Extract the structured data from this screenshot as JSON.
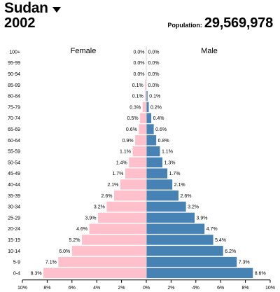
{
  "header": {
    "country": "Sudan",
    "year": "2002",
    "population_label": "Population:",
    "population_value": "29,569,978"
  },
  "chart_data": {
    "type": "bar",
    "orientation": "horizontal-population-pyramid",
    "categories": [
      "100+",
      "95-99",
      "90-94",
      "85-89",
      "80-84",
      "75-79",
      "70-74",
      "65-69",
      "60-64",
      "55-59",
      "50-54",
      "45-49",
      "40-44",
      "35-39",
      "30-34",
      "25-29",
      "20-24",
      "15-19",
      "10-14",
      "5-9",
      "0-4"
    ],
    "series": [
      {
        "name": "Female",
        "color": "#ffc0cb",
        "values": [
          0.0,
          0.0,
          0.0,
          0.1,
          0.1,
          0.3,
          0.5,
          0.6,
          0.9,
          1.1,
          1.4,
          1.7,
          2.1,
          2.6,
          3.2,
          3.9,
          4.6,
          5.2,
          6.0,
          7.1,
          8.3
        ],
        "labels": [
          "0.0%",
          "0.0%",
          "0.0%",
          "0.1%",
          "0.1%",
          "0.3%",
          "0.5%",
          "0.6%",
          "0.9%",
          "1.1%",
          "1.4%",
          "1.7%",
          "2.1%",
          "2.6%",
          "3.2%",
          "3.9%",
          "4.6%",
          "5.2%",
          "6.0%",
          "7.1%",
          "8.3%"
        ]
      },
      {
        "name": "Male",
        "color": "#4682b4",
        "values": [
          0.0,
          0.0,
          0.0,
          0.0,
          0.1,
          0.2,
          0.4,
          0.6,
          0.8,
          1.1,
          1.3,
          1.7,
          2.1,
          2.6,
          3.2,
          3.9,
          4.7,
          5.4,
          6.2,
          7.3,
          8.6
        ],
        "labels": [
          "0.0%",
          "0.0%",
          "0.0%",
          "0.0%",
          "0.1%",
          "0.2%",
          "0.4%",
          "0.6%",
          "0.8%",
          "1.1%",
          "1.3%",
          "1.7%",
          "2.1%",
          "2.6%",
          "3.2%",
          "3.9%",
          "4.7%",
          "5.4%",
          "6.2%",
          "7.3%",
          "8.6%"
        ]
      }
    ],
    "x_ticks": [
      "10%",
      "8%",
      "6%",
      "4%",
      "2%",
      "0%",
      "2%",
      "4%",
      "6%",
      "8%",
      "10%"
    ],
    "xlim": [
      -10,
      10
    ],
    "unit": "%"
  }
}
